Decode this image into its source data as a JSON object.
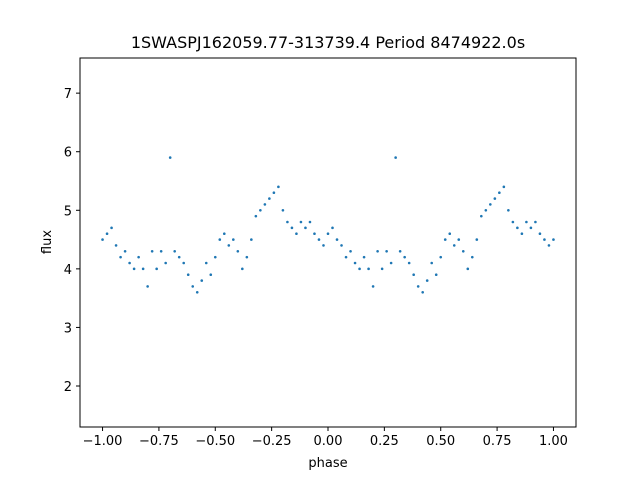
{
  "chart_data": {
    "type": "scatter",
    "title": "1SWASPJ162059.77-313739.4 Period 8474922.0s",
    "xlabel": "phase",
    "ylabel": "flux",
    "xlim": [
      -1.1,
      1.1
    ],
    "ylim": [
      1.3,
      7.6
    ],
    "xticks": [
      -1.0,
      -0.75,
      -0.5,
      -0.25,
      0.0,
      0.25,
      0.5,
      0.75,
      1.0
    ],
    "xtick_labels": [
      "−1.00",
      "−0.75",
      "−0.50",
      "−0.25",
      "0.00",
      "0.25",
      "0.50",
      "0.75",
      "1.00"
    ],
    "yticks": [
      2,
      3,
      4,
      5,
      6,
      7
    ],
    "ytick_labels": [
      "2",
      "3",
      "4",
      "5",
      "6",
      "7"
    ],
    "grid": false,
    "marker_color": "#1f77b4",
    "series": [
      {
        "name": "",
        "x": [
          -1.0,
          -0.98,
          -0.96,
          -0.94,
          -0.92,
          -0.9,
          -0.88,
          -0.86,
          -0.84,
          -0.82,
          -0.8,
          -0.78,
          -0.76,
          -0.74,
          -0.72,
          -0.7,
          -0.68,
          -0.66,
          -0.64,
          -0.62,
          -0.6,
          -0.58,
          -0.56,
          -0.54,
          -0.52,
          -0.5,
          -0.48,
          -0.46,
          -0.44,
          -0.42,
          -0.4,
          -0.38,
          -0.36,
          -0.34,
          -0.32,
          -0.3,
          -0.28,
          -0.26,
          -0.24,
          -0.22,
          -0.2,
          -0.18,
          -0.16,
          -0.14,
          -0.12,
          -0.1,
          -0.08,
          -0.06,
          -0.04,
          -0.02,
          0.0,
          0.02,
          0.04,
          0.06,
          0.08,
          0.1,
          0.12,
          0.14,
          0.16,
          0.18,
          0.2,
          0.22,
          0.24,
          0.26,
          0.28,
          0.3,
          0.32,
          0.34,
          0.36,
          0.38,
          0.4,
          0.42,
          0.44,
          0.46,
          0.48,
          0.5,
          0.52,
          0.54,
          0.56,
          0.58,
          0.6,
          0.62,
          0.64,
          0.66,
          0.68,
          0.7,
          0.72,
          0.74,
          0.76,
          0.78,
          0.8,
          0.82,
          0.84,
          0.86,
          0.88,
          0.9,
          0.92,
          0.94,
          0.96,
          0.98,
          1.0
        ],
        "y": [
          4.5,
          4.6,
          4.7,
          4.4,
          4.2,
          4.3,
          4.1,
          4.0,
          4.2,
          4.0,
          3.7,
          4.3,
          4.0,
          4.3,
          4.1,
          5.9,
          4.3,
          4.2,
          4.1,
          3.9,
          3.7,
          3.6,
          3.8,
          4.1,
          3.9,
          4.2,
          4.5,
          4.6,
          4.4,
          4.5,
          4.3,
          4.0,
          4.2,
          4.5,
          4.9,
          5.0,
          5.1,
          5.2,
          5.3,
          5.4,
          5.0,
          4.8,
          4.7,
          4.6,
          4.8,
          4.7,
          4.8,
          4.6,
          4.5,
          4.4,
          4.6,
          4.7,
          4.5,
          4.4,
          4.2,
          4.3,
          4.1,
          4.0,
          4.2,
          4.0,
          3.7,
          4.3,
          4.0,
          4.3,
          4.1,
          5.9,
          4.3,
          4.2,
          4.1,
          3.9,
          3.7,
          3.6,
          3.8,
          4.1,
          3.9,
          4.2,
          4.5,
          4.6,
          4.4,
          4.5,
          4.3,
          4.0,
          4.2,
          4.5,
          4.9,
          5.0,
          5.1,
          5.2,
          5.3,
          5.4,
          5.0,
          4.8,
          4.7,
          4.6,
          4.8,
          4.7,
          4.8,
          4.6,
          4.5,
          4.4,
          4.5
        ]
      }
    ]
  }
}
